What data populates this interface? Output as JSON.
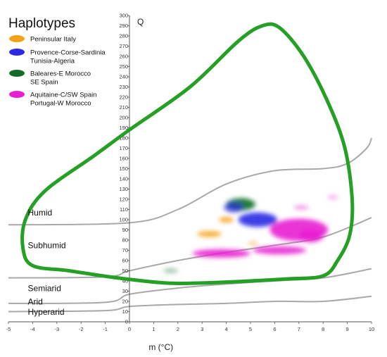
{
  "chart_data": {
    "type": "scatter",
    "title": "",
    "xlabel": "m (°C)",
    "ylabel": "Q",
    "xlim": [
      -5,
      10
    ],
    "ylim": [
      0,
      300
    ],
    "x_ticks": [
      -5,
      -4,
      -3,
      -2,
      -1,
      0,
      1,
      2,
      3,
      4,
      5,
      6,
      7,
      8,
      9,
      10
    ],
    "y_ticks": [
      0,
      10,
      20,
      30,
      40,
      50,
      60,
      70,
      80,
      90,
      100,
      110,
      120,
      130,
      140,
      150,
      160,
      170,
      180,
      190,
      200,
      210,
      220,
      230,
      240,
      250,
      260,
      270,
      280,
      290,
      300
    ],
    "legend": {
      "title": "Haplotypes",
      "placement": "top-left",
      "entries": [
        {
          "lines": [
            "Peninsular Italy"
          ],
          "color": "#f5a21b"
        },
        {
          "lines": [
            "Provence-Corse-Sardinia",
            "Tunisia-Algeria"
          ],
          "color": "#2a2ae6"
        },
        {
          "lines": [
            "Baleares-E Morocco",
            "SE Spain"
          ],
          "color": "#136b2a"
        },
        {
          "lines": [
            "Aquitaine-C/SW Spain",
            "Portugal-W Morocco"
          ],
          "color": "#e81ed2"
        }
      ]
    },
    "zones": [
      {
        "label": "Humid",
        "x": -4.2,
        "y": 104
      },
      {
        "label": "Subhumid",
        "x": -4.2,
        "y": 72
      },
      {
        "label": "Semiarid",
        "x": -4.2,
        "y": 30
      },
      {
        "label": "Arid",
        "x": -4.2,
        "y": 17
      },
      {
        "label": "Hyperarid",
        "x": -4.2,
        "y": 7
      }
    ],
    "boundary_lines": [
      {
        "name": "humid-subhumid",
        "points": [
          [
            -5,
            95
          ],
          [
            0,
            97
          ],
          [
            2,
            110
          ],
          [
            4,
            135
          ],
          [
            6,
            148
          ],
          [
            8,
            150
          ],
          [
            9,
            155
          ],
          [
            9.8,
            170
          ],
          [
            10,
            180
          ]
        ]
      },
      {
        "name": "subhumid-semiarid",
        "points": [
          [
            -5,
            43
          ],
          [
            -1,
            44
          ],
          [
            0,
            50
          ],
          [
            2,
            60
          ],
          [
            4,
            68
          ],
          [
            6,
            75
          ],
          [
            8,
            83
          ],
          [
            10,
            102
          ]
        ]
      },
      {
        "name": "semiarid-arid",
        "points": [
          [
            -5,
            18
          ],
          [
            -1,
            19
          ],
          [
            0,
            27
          ],
          [
            2,
            33
          ],
          [
            4,
            37
          ],
          [
            6,
            40
          ],
          [
            8,
            43
          ],
          [
            10,
            52
          ]
        ]
      },
      {
        "name": "arid-hyperarid",
        "points": [
          [
            -5,
            10
          ],
          [
            -1,
            11
          ],
          [
            0,
            15
          ],
          [
            2,
            17
          ],
          [
            4,
            18
          ],
          [
            6,
            20
          ],
          [
            8,
            20
          ],
          [
            10,
            25
          ]
        ]
      }
    ],
    "envelope": {
      "color": "#24a024",
      "points": [
        [
          5.5,
          290
        ],
        [
          6.2,
          288
        ],
        [
          7.2,
          260
        ],
        [
          8.2,
          215
        ],
        [
          8.9,
          170
        ],
        [
          9.2,
          120
        ],
        [
          9.1,
          85
        ],
        [
          8.6,
          60
        ],
        [
          8,
          45
        ],
        [
          6.5,
          42
        ],
        [
          5,
          40
        ],
        [
          3,
          38
        ],
        [
          1.5,
          38
        ],
        [
          -0.5,
          43
        ],
        [
          -2.5,
          50
        ],
        [
          -4,
          55
        ],
        [
          -4.4,
          72
        ],
        [
          -4.3,
          100
        ],
        [
          -3.5,
          128
        ],
        [
          -1.5,
          162
        ],
        [
          0,
          188
        ],
        [
          2.5,
          230
        ],
        [
          4.5,
          275
        ],
        [
          5.5,
          290
        ]
      ]
    },
    "clusters": [
      {
        "group": "Peninsular Italy",
        "color": "#f5a21b",
        "x": 3.3,
        "y": 86,
        "rx": 0.5,
        "ry": 3,
        "opacity": 0.85
      },
      {
        "group": "Peninsular Italy",
        "color": "#f5a21b",
        "x": 4.0,
        "y": 100,
        "rx": 0.3,
        "ry": 3,
        "opacity": 0.8
      },
      {
        "group": "Peninsular Italy",
        "color": "#f5a21b",
        "x": 5.1,
        "y": 77,
        "rx": 0.2,
        "ry": 2,
        "opacity": 0.5
      },
      {
        "group": "Baleares-E Morocco, SE Spain",
        "color": "#136b2a",
        "x": 4.6,
        "y": 115,
        "rx": 0.6,
        "ry": 6,
        "opacity": 0.9
      },
      {
        "group": "Baleares-E Morocco, SE Spain",
        "color": "#136b2a",
        "x": 1.7,
        "y": 50,
        "rx": 0.3,
        "ry": 2,
        "opacity": 0.45
      },
      {
        "group": "Provence-Corse-Sardinia, Tunisia-Algeria",
        "color": "#2a2ae6",
        "x": 5.3,
        "y": 100,
        "rx": 0.8,
        "ry": 7,
        "opacity": 0.9
      },
      {
        "group": "Provence-Corse-Sardinia, Tunisia-Algeria",
        "color": "#2a2ae6",
        "x": 4.3,
        "y": 112,
        "rx": 0.4,
        "ry": 5,
        "opacity": 0.7
      },
      {
        "group": "Aquitaine-C/SW Spain, Portugal-W Morocco",
        "color": "#e81ed2",
        "x": 7.0,
        "y": 90,
        "rx": 1.2,
        "ry": 11,
        "opacity": 0.9
      },
      {
        "group": "Aquitaine-C/SW Spain, Portugal-W Morocco",
        "color": "#e81ed2",
        "x": 3.8,
        "y": 67,
        "rx": 1.2,
        "ry": 4,
        "opacity": 0.9
      },
      {
        "group": "Aquitaine-C/SW Spain, Portugal-W Morocco",
        "color": "#e81ed2",
        "x": 6.2,
        "y": 70,
        "rx": 1.1,
        "ry": 4,
        "opacity": 0.85
      },
      {
        "group": "Aquitaine-C/SW Spain, Portugal-W Morocco",
        "color": "#e81ed2",
        "x": 7.5,
        "y": 84,
        "rx": 0.5,
        "ry": 6,
        "opacity": 0.9
      },
      {
        "group": "Aquitaine-C/SW Spain, Portugal-W Morocco",
        "color": "#e81ed2",
        "x": 7.1,
        "y": 112,
        "rx": 0.3,
        "ry": 2,
        "opacity": 0.5
      },
      {
        "group": "Aquitaine-C/SW Spain, Portugal-W Morocco",
        "color": "#e81ed2",
        "x": 8.4,
        "y": 122,
        "rx": 0.2,
        "ry": 2,
        "opacity": 0.4
      }
    ]
  }
}
